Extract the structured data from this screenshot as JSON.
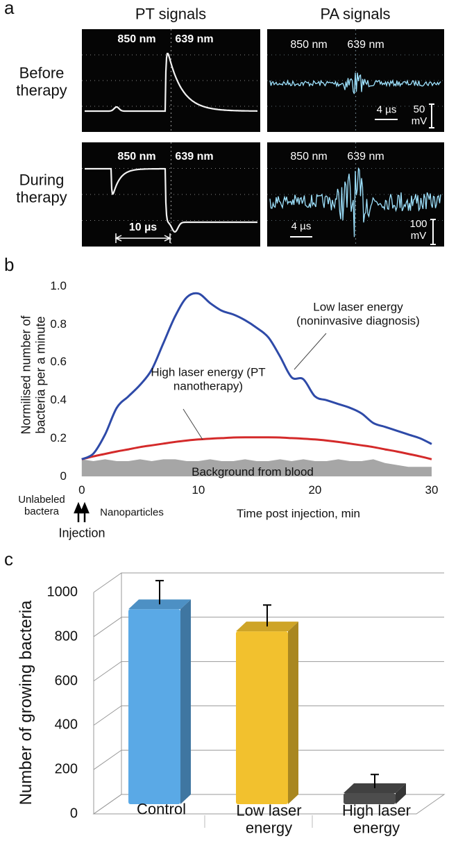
{
  "panel_a": {
    "label": "a",
    "columns": [
      "PT signals",
      "PA signals"
    ],
    "rows": [
      "Before therapy",
      "During therapy"
    ],
    "screens": [
      {
        "texts": [
          "850 nm",
          "639 nm"
        ]
      },
      {
        "texts": [
          "850 nm",
          "639 nm",
          "4 µs",
          "50 mV"
        ]
      },
      {
        "texts": [
          "850 nm",
          "639 nm",
          "10 µs"
        ]
      },
      {
        "texts": [
          "850 nm",
          "639 nm",
          "4 µs",
          "100 mV"
        ]
      }
    ]
  },
  "chart_data": [
    {
      "type": "line",
      "panel_label": "b",
      "y_label": "Normilised number of bacteria per a minute",
      "x_label": "Time post injection, min",
      "annotations": [
        "Unlabeled bactera",
        "Nanoparticles",
        "Injection"
      ],
      "x": [
        0,
        1,
        2,
        3,
        4,
        5,
        6,
        7,
        8,
        9,
        10,
        11,
        12,
        13,
        14,
        15,
        16,
        17,
        18,
        19,
        20,
        21,
        22,
        23,
        24,
        25,
        26,
        27,
        28,
        29,
        30
      ],
      "series": [
        {
          "name": "Low laser energy (noninvasive diagnosis)",
          "color": "#2e4aa8",
          "values": [
            0.09,
            0.12,
            0.22,
            0.36,
            0.42,
            0.48,
            0.56,
            0.7,
            0.84,
            0.94,
            0.96,
            0.91,
            0.87,
            0.85,
            0.82,
            0.78,
            0.73,
            0.63,
            0.52,
            0.51,
            0.42,
            0.4,
            0.38,
            0.36,
            0.33,
            0.28,
            0.26,
            0.24,
            0.22,
            0.2,
            0.17
          ]
        },
        {
          "name": "High laser energy (PT nanotherapy)",
          "color": "#d42a2a",
          "values": [
            0.09,
            0.105,
            0.118,
            0.131,
            0.142,
            0.154,
            0.163,
            0.172,
            0.181,
            0.188,
            0.194,
            0.198,
            0.201,
            0.204,
            0.205,
            0.205,
            0.205,
            0.204,
            0.201,
            0.198,
            0.194,
            0.188,
            0.181,
            0.172,
            0.163,
            0.154,
            0.142,
            0.131,
            0.118,
            0.105,
            0.09
          ]
        },
        {
          "name": "Background from blood",
          "color": "#a6a6a6",
          "area": true,
          "values": [
            0.09,
            0.08,
            0.09,
            0.08,
            0.08,
            0.09,
            0.08,
            0.09,
            0.09,
            0.08,
            0.08,
            0.09,
            0.08,
            0.08,
            0.09,
            0.08,
            0.08,
            0.09,
            0.08,
            0.09,
            0.08,
            0.08,
            0.09,
            0.08,
            0.08,
            0.09,
            0.07,
            0.06,
            0.05,
            0.05,
            0.05
          ]
        }
      ],
      "xlim": [
        -1,
        30
      ],
      "xticks": [
        0,
        10,
        20,
        30
      ],
      "ylim": [
        0,
        1.05
      ],
      "yticks": [
        0,
        0.2,
        0.4,
        0.6,
        0.8,
        {
          "value": 1,
          "label": "1.0"
        }
      ]
    },
    {
      "type": "bar3d",
      "panel_label": "c",
      "y_label": "Number of growing bacteria",
      "categories": [
        "Control",
        "Low laser energy",
        "High laser energy"
      ],
      "values": [
        880,
        780,
        50
      ],
      "errors": [
        85,
        75,
        40
      ],
      "colors": [
        "#5aa9e6",
        "#f2c12e",
        "#4d4d4d"
      ],
      "ylim": [
        0,
        1000
      ],
      "yticks": [
        0,
        200,
        400,
        600,
        800,
        1000
      ],
      "grid": true
    }
  ]
}
